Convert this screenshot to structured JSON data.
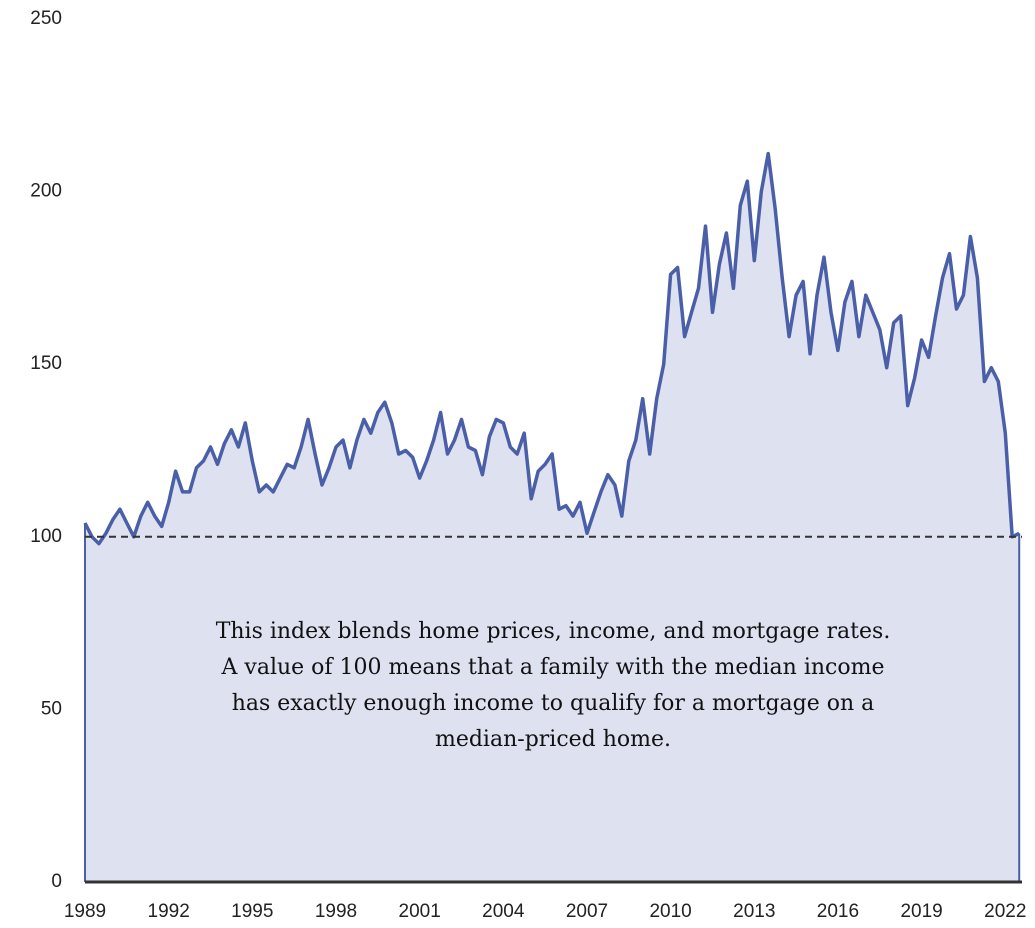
{
  "chart_data": {
    "type": "area",
    "x": [
      1989,
      1989.25,
      1989.5,
      1989.75,
      1990,
      1990.25,
      1990.5,
      1990.75,
      1991,
      1991.25,
      1991.5,
      1991.75,
      1992,
      1992.25,
      1992.5,
      1992.75,
      1993,
      1993.25,
      1993.5,
      1993.75,
      1994,
      1994.25,
      1994.5,
      1994.75,
      1995,
      1995.25,
      1995.5,
      1995.75,
      1996,
      1996.25,
      1996.5,
      1996.75,
      1997,
      1997.25,
      1997.5,
      1997.75,
      1998,
      1998.25,
      1998.5,
      1998.75,
      1999,
      1999.25,
      1999.5,
      1999.75,
      2000,
      2000.25,
      2000.5,
      2000.75,
      2001,
      2001.25,
      2001.5,
      2001.75,
      2002,
      2002.25,
      2002.5,
      2002.75,
      2003,
      2003.25,
      2003.5,
      2003.75,
      2004,
      2004.25,
      2004.5,
      2004.75,
      2005,
      2005.25,
      2005.5,
      2005.75,
      2006,
      2006.25,
      2006.5,
      2006.75,
      2007,
      2007.25,
      2007.5,
      2007.75,
      2008,
      2008.25,
      2008.5,
      2008.75,
      2009,
      2009.25,
      2009.5,
      2009.75,
      2010,
      2010.25,
      2010.5,
      2010.75,
      2011,
      2011.25,
      2011.5,
      2011.75,
      2012,
      2012.25,
      2012.5,
      2012.75,
      2013,
      2013.25,
      2013.5,
      2013.75,
      2014,
      2014.25,
      2014.5,
      2014.75,
      2015,
      2015.25,
      2015.5,
      2015.75,
      2016,
      2016.25,
      2016.5,
      2016.75,
      2017,
      2017.25,
      2017.5,
      2017.75,
      2018,
      2018.25,
      2018.5,
      2018.75,
      2019,
      2019.25,
      2019.5,
      2019.75,
      2020,
      2020.25,
      2020.5,
      2020.75,
      2021,
      2021.25,
      2021.5,
      2021.75,
      2022,
      2022.25,
      2022.5
    ],
    "series": [
      {
        "color": "#4a5fa8",
        "fill": "#dde1f0",
        "values": [
          104,
          100,
          98,
          101,
          105,
          108,
          104,
          100,
          106,
          110,
          106,
          103,
          110,
          119,
          113,
          113,
          120,
          122,
          126,
          121,
          127,
          131,
          126,
          133,
          122,
          113,
          115,
          113,
          117,
          121,
          120,
          126,
          134,
          124,
          115,
          120,
          126,
          128,
          120,
          128,
          134,
          130,
          136,
          139,
          133,
          124,
          125,
          123,
          117,
          122,
          128,
          136,
          124,
          128,
          134,
          126,
          125,
          118,
          129,
          134,
          133,
          126,
          124,
          130,
          111,
          119,
          121,
          124,
          108,
          109,
          106,
          110,
          101,
          107,
          113,
          118,
          115,
          106,
          122,
          128,
          140,
          124,
          140,
          150,
          176,
          178,
          158,
          165,
          172,
          190,
          165,
          179,
          188,
          172,
          196,
          203,
          180,
          200,
          211,
          195,
          175,
          158,
          170,
          174,
          153,
          170,
          181,
          165,
          154,
          168,
          174,
          158,
          170,
          165,
          160,
          149,
          162,
          164,
          138,
          146,
          157,
          152,
          164,
          175,
          182,
          166,
          170,
          187,
          175,
          145,
          149,
          145,
          130,
          100,
          101
        ]
      }
    ],
    "reference_line": 100,
    "annotation": [
      "This index blends home prices, income, and mortgage rates.",
      "A value of 100 means that a family with the median income",
      "has exactly enough income to qualify for a mortgage on a",
      "median-priced home."
    ],
    "xlim": [
      1989,
      2022.6
    ],
    "xticks": [
      1989,
      1992,
      1995,
      1998,
      2001,
      2004,
      2007,
      2010,
      2013,
      2016,
      2019,
      2022
    ],
    "ylim": [
      0,
      250
    ],
    "yticks": [
      0,
      50,
      100,
      150,
      200,
      250
    ]
  }
}
